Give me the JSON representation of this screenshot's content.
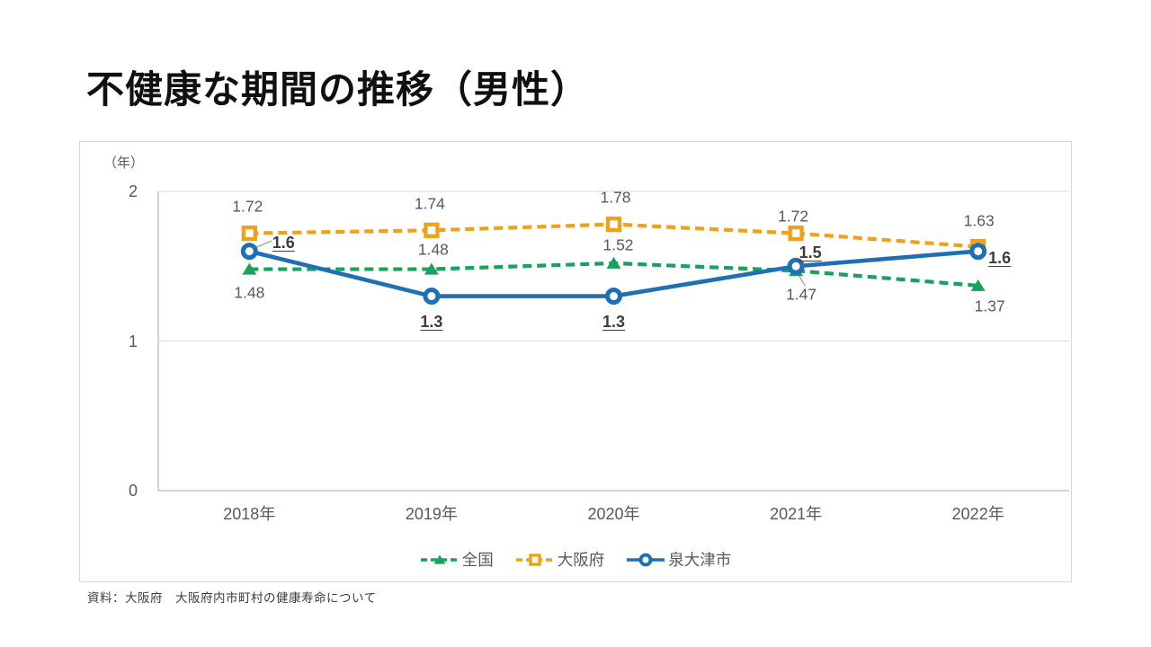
{
  "slide": {
    "title": "不健康な期間の推移（男性）",
    "source": "資料：大阪府　大阪府内市町村の健康寿命について"
  },
  "chart_data": {
    "type": "line",
    "title": "不健康な期間の推移（男性）",
    "unit_label": "（年）",
    "categories": [
      "2018年",
      "2019年",
      "2020年",
      "2021年",
      "2022年"
    ],
    "ylim": [
      0,
      2
    ],
    "yticks": [
      "0",
      "1",
      "2"
    ],
    "grid": true,
    "legend_position": "bottom",
    "series": [
      {
        "name": "全国",
        "color": "#18a35c",
        "line": "dashed",
        "marker": "triangle",
        "values": [
          1.48,
          1.48,
          1.52,
          1.47,
          1.37
        ],
        "labels": [
          "1.48",
          "1.48",
          "1.52",
          "1.47",
          "1.37"
        ],
        "emphasized_labels": false
      },
      {
        "name": "大阪府",
        "color": "#f2a116",
        "line": "dashed",
        "marker": "square",
        "values": [
          1.72,
          1.74,
          1.78,
          1.72,
          1.63
        ],
        "labels": [
          "1.72",
          "1.74",
          "1.78",
          "1.72",
          "1.63"
        ],
        "emphasized_labels": false
      },
      {
        "name": "泉大津市",
        "color": "#1f6fb5",
        "line": "solid",
        "marker": "circle",
        "values": [
          1.6,
          1.3,
          1.3,
          1.5,
          1.6
        ],
        "labels": [
          "1.6",
          "1.3",
          "1.3",
          "1.5",
          "1.6"
        ],
        "emphasized_labels": true
      }
    ]
  }
}
